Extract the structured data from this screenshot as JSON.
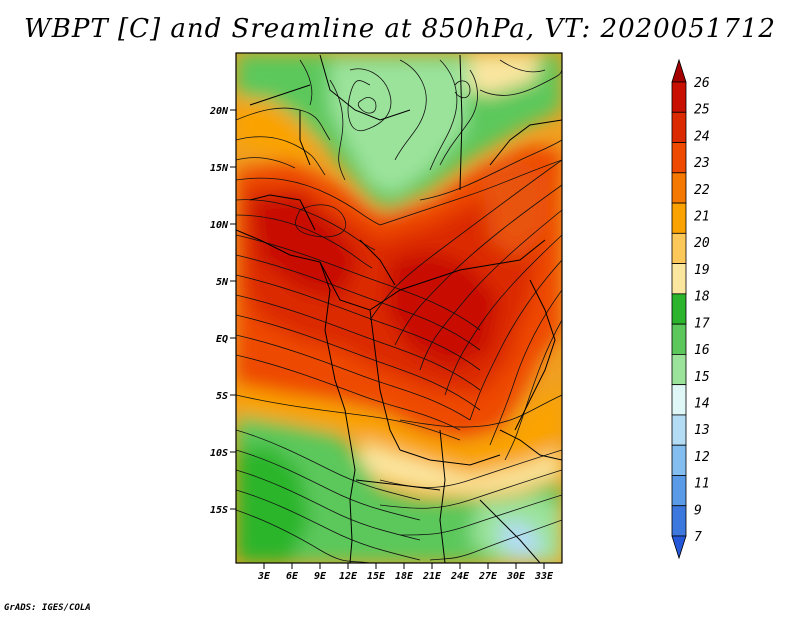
{
  "title": "WBPT [C] and Sreamline at 850hPa, VT: 2020051712",
  "credit": "GrADS: IGES/COLA",
  "map": {
    "variable": "Wet-bulb potential temperature",
    "level": "850hPa",
    "lat_labels": [
      "20N",
      "15N",
      "10N",
      "5N",
      "EQ",
      "5S",
      "10S",
      "15S"
    ],
    "lon_labels": [
      "3E",
      "6E",
      "9E",
      "12E",
      "15E",
      "18E",
      "21E",
      "24E",
      "27E",
      "30E",
      "33E"
    ]
  },
  "colorbar": {
    "levels": [
      "26",
      "25",
      "24",
      "23",
      "22",
      "21",
      "20",
      "19",
      "18",
      "17",
      "16",
      "15",
      "14",
      "13",
      "12",
      "11",
      "9",
      "7"
    ],
    "colors": [
      "#a50000",
      "#c80f00",
      "#dc2a00",
      "#ee4a00",
      "#f57800",
      "#faa300",
      "#fcc85a",
      "#fbe6a0",
      "#2cb52c",
      "#5cc85c",
      "#9be39b",
      "#e0f7f7",
      "#b4dcf5",
      "#84bdf0",
      "#5a9ae6",
      "#3c78de",
      "#2458d8"
    ]
  }
}
